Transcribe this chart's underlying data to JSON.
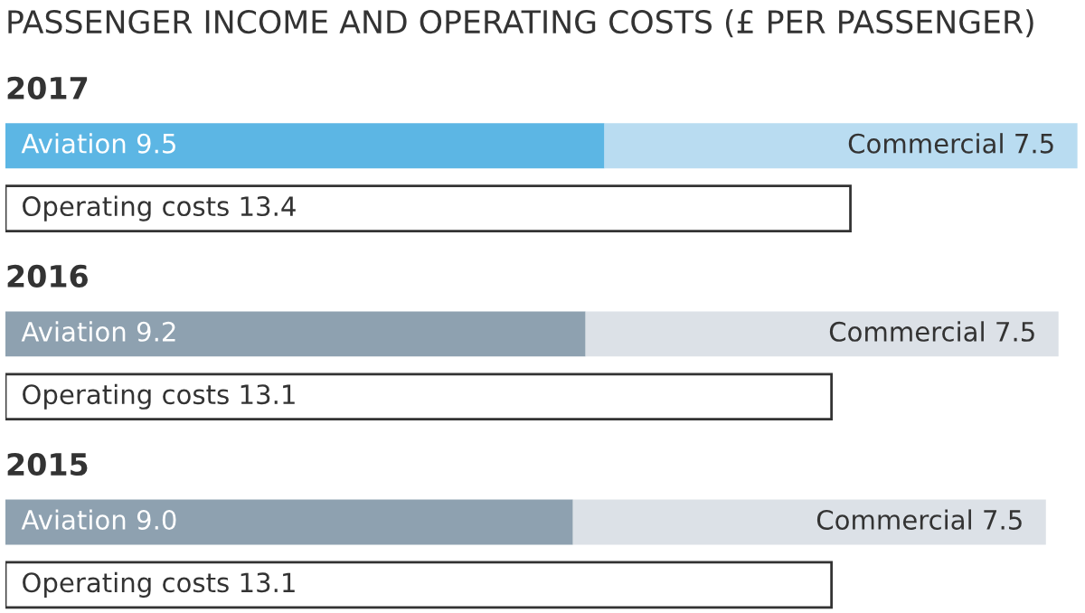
{
  "chart_data": {
    "type": "bar",
    "orientation": "horizontal",
    "stacked": true,
    "title": "PASSENGER INCOME AND OPERATING COSTS (£ PER PASSENGER)",
    "categories": [
      "2017",
      null,
      "2016",
      null,
      "2015",
      null
    ],
    "series": [
      {
        "colors": [
          "#5cb6e4",
          null,
          "#8ea1b0",
          null,
          "#8ea1b0",
          null
        ],
        "values": [
          9.5,
          null,
          9.2,
          null,
          9.0,
          null
        ],
        "value_labels": [
          "Aviation 9.5",
          null,
          "Aviation 9.2",
          null,
          "Aviation 9.0",
          null
        ]
      },
      {
        "colors": [
          "#b9dcf1",
          null,
          "#dce1e7",
          null,
          "#dce1e7",
          null
        ],
        "values": [
          7.5,
          null,
          7.5,
          null,
          7.5,
          null
        ],
        "value_labels": [
          "Commercial 7.5",
          null,
          "Commercial 7.5",
          null,
          "Commercial 7.5",
          null
        ]
      },
      {
        "color": "#ffffff",
        "values": [
          null,
          13.4,
          null,
          13.1,
          null,
          13.1
        ],
        "value_labels": [
          null,
          "Operating costs 13.4",
          null,
          "Operating costs 13.1",
          null,
          "Operating costs 13.1"
        ]
      }
    ]
  }
}
